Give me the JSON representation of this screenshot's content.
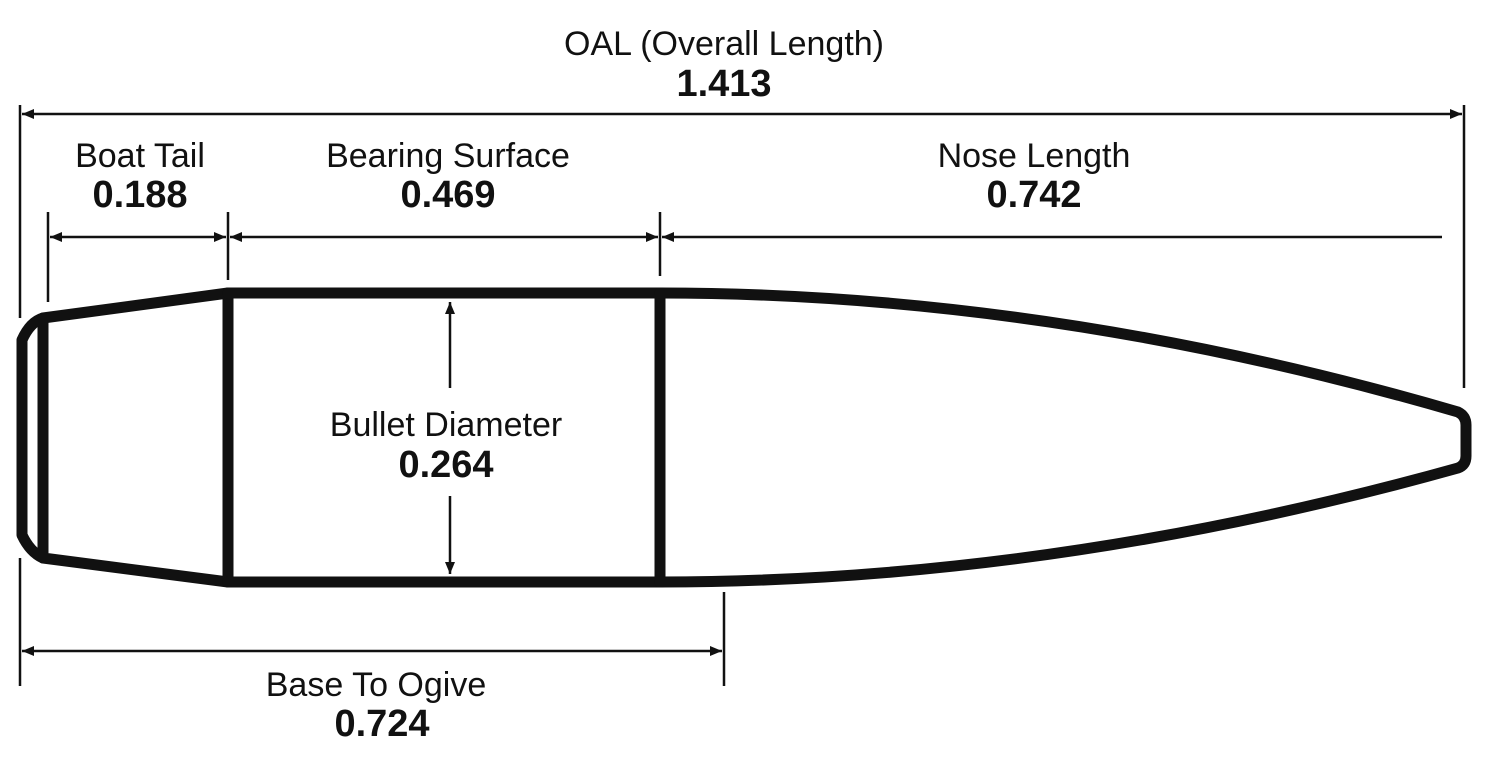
{
  "dimensions": {
    "oal": {
      "name": "OAL (Overall Length)",
      "value": "1.413"
    },
    "boat_tail": {
      "name": "Boat Tail",
      "value": "0.188"
    },
    "bearing_surface": {
      "name": "Bearing Surface",
      "value": "0.469"
    },
    "nose_length": {
      "name": "Nose Length",
      "value": "0.742"
    },
    "bullet_diameter": {
      "name": "Bullet Diameter",
      "value": "0.264"
    },
    "base_to_ogive": {
      "name": "Base To Ogive",
      "value": "0.724"
    }
  },
  "colors": {
    "ink": "#111111",
    "background": "#ffffff"
  }
}
